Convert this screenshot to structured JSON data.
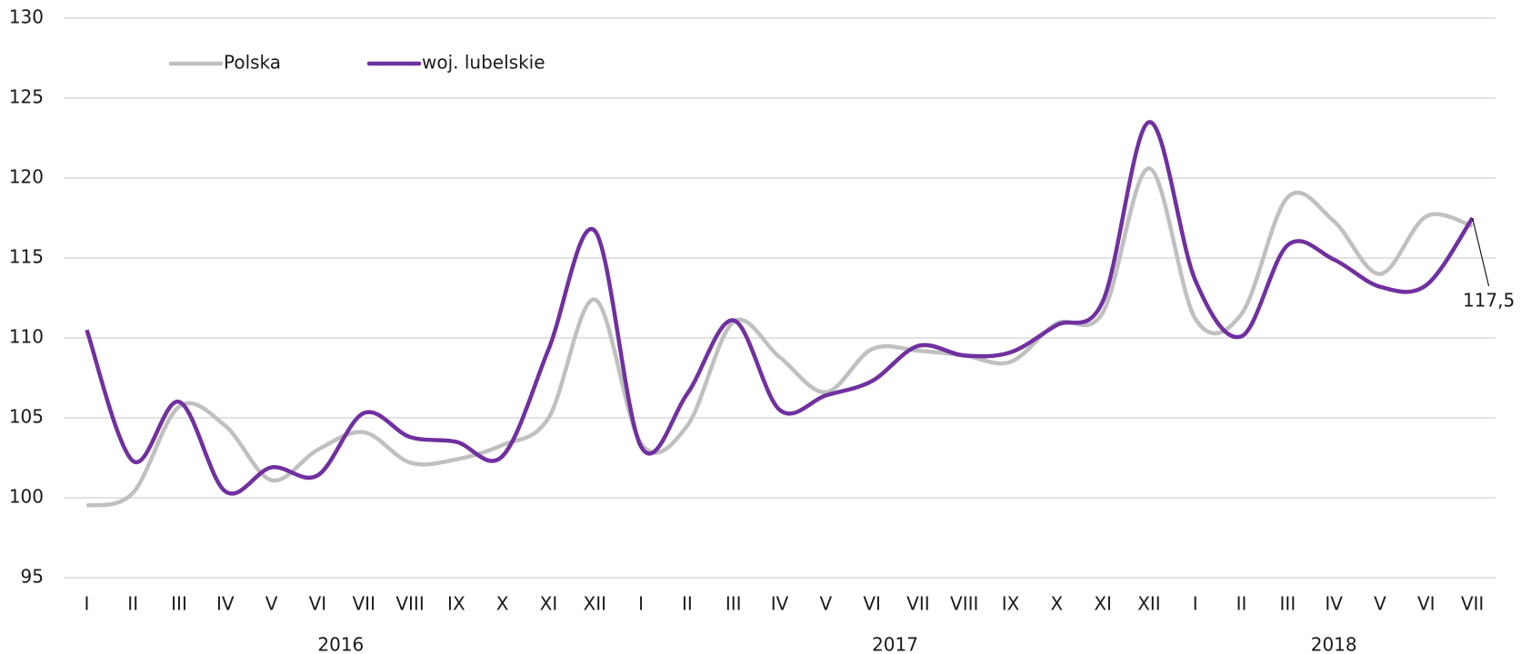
{
  "chart_data": {
    "type": "line",
    "categories": [
      "I",
      "II",
      "III",
      "IV",
      "V",
      "VI",
      "VII",
      "VIII",
      "IX",
      "X",
      "XI",
      "XII",
      "I",
      "II",
      "III",
      "IV",
      "V",
      "VI",
      "VII",
      "VIII",
      "IX",
      "X",
      "XI",
      "XII",
      "I",
      "II",
      "III",
      "IV",
      "V",
      "VI",
      "VII"
    ],
    "years": [
      "2016",
      "2017",
      "2018"
    ],
    "series": [
      {
        "name": "Polska",
        "color": "#c0c0c0",
        "values": [
          99.5,
          100.3,
          105.7,
          104.5,
          101.1,
          103.0,
          104.1,
          102.2,
          102.4,
          103.3,
          105.0,
          112.4,
          103.4,
          104.5,
          111.0,
          108.8,
          106.6,
          109.3,
          109.2,
          108.9,
          108.5,
          110.9,
          111.6,
          120.6,
          111.2,
          111.5,
          118.8,
          117.3,
          114.0,
          117.6,
          117.0
        ]
      },
      {
        "name": "woj. lubelskie",
        "color": "#7030a0",
        "values": [
          110.5,
          102.3,
          106.0,
          100.4,
          101.9,
          101.4,
          105.3,
          103.8,
          103.5,
          102.6,
          109.3,
          116.7,
          103.2,
          106.5,
          111.1,
          105.5,
          106.4,
          107.3,
          109.5,
          108.9,
          109.1,
          110.8,
          112.3,
          123.5,
          113.6,
          110.1,
          115.8,
          114.9,
          113.2,
          113.3,
          117.5
        ],
        "value_labels": [
          null,
          null,
          null,
          null,
          null,
          null,
          null,
          null,
          null,
          null,
          null,
          null,
          null,
          null,
          null,
          null,
          null,
          null,
          null,
          null,
          null,
          null,
          null,
          null,
          null,
          null,
          null,
          null,
          null,
          null,
          "117,5"
        ]
      }
    ],
    "ylim": [
      95,
      130
    ],
    "yticks": [
      95,
      100,
      105,
      110,
      115,
      120,
      125,
      130
    ],
    "grid": true,
    "legend": "upper left",
    "smooth": true
  }
}
